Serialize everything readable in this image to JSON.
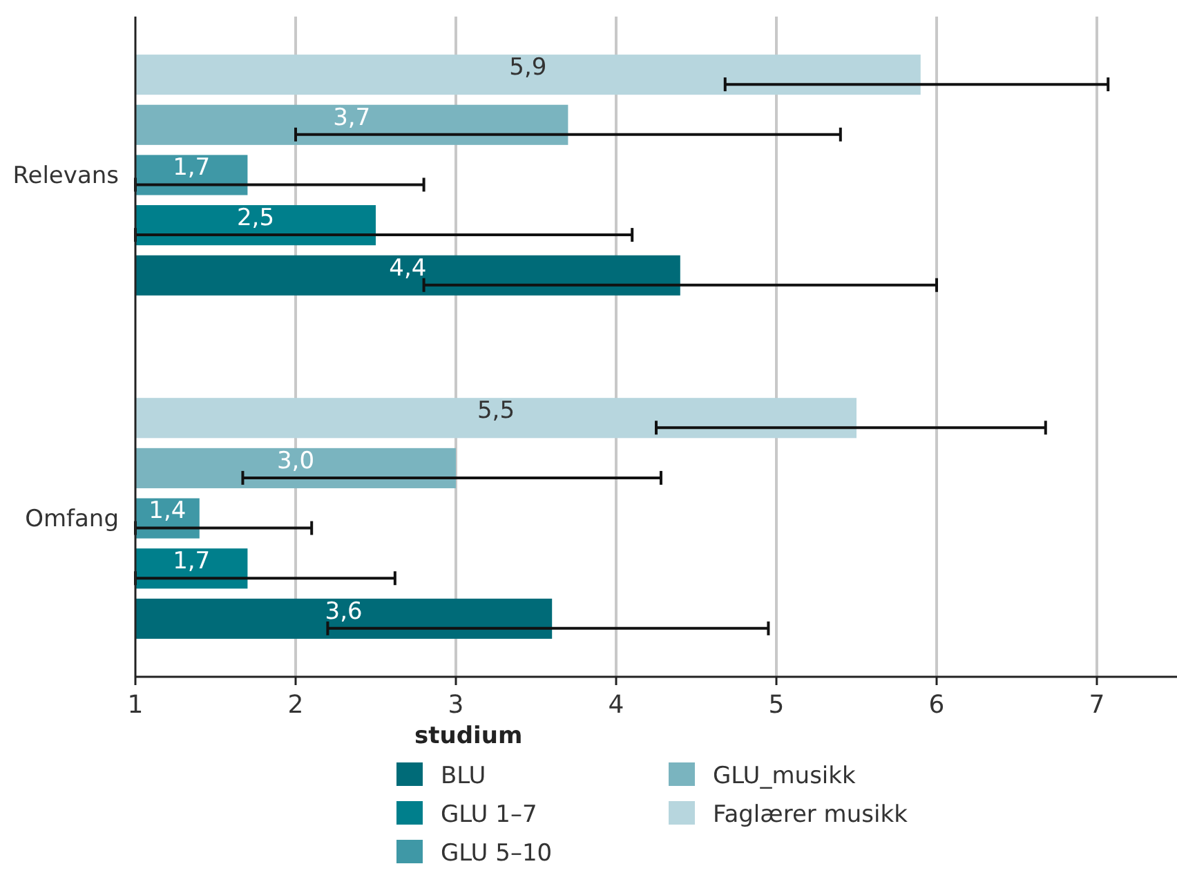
{
  "chart_data": {
    "type": "bar",
    "orientation": "horizontal",
    "categories": [
      "Relevans",
      "Omfang"
    ],
    "legend_title": "studium",
    "legend": "bottom",
    "grid": "x",
    "xlim": [
      1,
      7.5
    ],
    "xticks": [
      1,
      2,
      3,
      4,
      5,
      6,
      7
    ],
    "series": [
      {
        "name": "BLU",
        "color": "#006b78",
        "values": [
          4.4,
          3.6
        ],
        "value_labels": [
          "4,4",
          "3,6"
        ],
        "errors": [
          [
            2.8,
            6.0
          ],
          [
            2.2,
            4.95
          ]
        ]
      },
      {
        "name": "GLU 1–7",
        "color": "#007f8c",
        "values": [
          2.5,
          1.7
        ],
        "value_labels": [
          "2,5",
          "1,7"
        ],
        "errors": [
          [
            1.0,
            4.1
          ],
          [
            1.0,
            2.62
          ]
        ]
      },
      {
        "name": "GLU 5–10",
        "color": "#3f98a6",
        "values": [
          1.7,
          1.4
        ],
        "value_labels": [
          "1,7",
          "1,4"
        ],
        "errors": [
          [
            1.0,
            2.8
          ],
          [
            1.0,
            2.1
          ]
        ]
      },
      {
        "name": "GLU_musikk",
        "color": "#7ab4bf",
        "values": [
          3.7,
          3.0
        ],
        "value_labels": [
          "3,7",
          "3,0"
        ],
        "errors": [
          [
            2.0,
            5.4
          ],
          [
            1.67,
            4.28
          ]
        ]
      },
      {
        "name": "Faglærer musikk",
        "color": "#b7d6de",
        "values": [
          5.9,
          5.5
        ],
        "value_labels": [
          "5,9",
          "5,5"
        ],
        "errors": [
          [
            4.68,
            7.07
          ],
          [
            4.25,
            6.68
          ]
        ]
      }
    ]
  }
}
